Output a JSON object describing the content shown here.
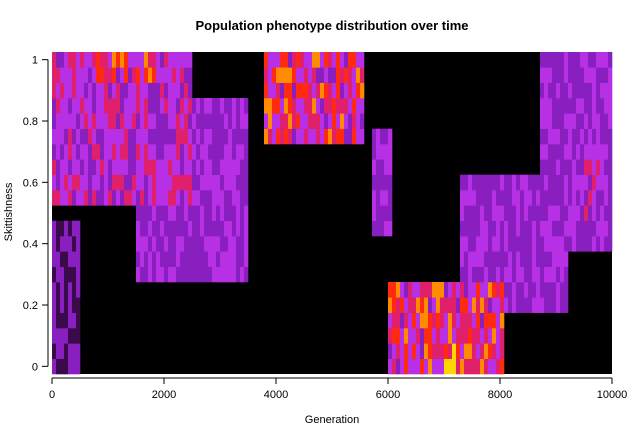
{
  "chart_data": {
    "type": "heatmap",
    "title": "Population phenotype distribution over time",
    "xlabel": "Generation",
    "ylabel": "Skittishness",
    "xlim": [
      0,
      10000
    ],
    "ylim": [
      -0.025,
      1.025
    ],
    "x_ticks": [
      "0",
      "2000",
      "4000",
      "6000",
      "8000",
      "10000"
    ],
    "x_tick_values": [
      0,
      2000,
      4000,
      6000,
      8000,
      10000
    ],
    "y_ticks": [
      "0",
      "0.2",
      "0.4",
      "0.6",
      "0.8",
      "1"
    ],
    "y_tick_values": [
      0,
      0.2,
      0.4,
      0.6,
      0.8,
      1
    ],
    "color_scale": [
      "#000000",
      "#3a0a4a",
      "#8a1fc0",
      "#b830e6",
      "#e0206a",
      "#ff2a10",
      "#ff8c00",
      "#ffd700"
    ],
    "cell_height": 0.05,
    "grid": false,
    "dominant_bands": [
      {
        "x_start": 0,
        "x_end": 500,
        "y_start": 0.0,
        "y_end": 0.45,
        "level": "low"
      },
      {
        "x_start": 0,
        "x_end": 2500,
        "y_start": 0.55,
        "y_end": 1.0,
        "level": "high"
      },
      {
        "x_start": 800,
        "x_end": 1900,
        "y_start": 0.95,
        "y_end": 1.0,
        "level": "peak"
      },
      {
        "x_start": 1500,
        "x_end": 3500,
        "y_start": 0.3,
        "y_end": 0.85,
        "level": "mid"
      },
      {
        "x_start": 3800,
        "x_end": 5600,
        "y_start": 0.75,
        "y_end": 1.0,
        "level": "peak"
      },
      {
        "x_start": 4300,
        "x_end": 4500,
        "y_start": 0.95,
        "y_end": 1.0,
        "level": "max"
      },
      {
        "x_start": 5700,
        "x_end": 6100,
        "y_start": 0.45,
        "y_end": 0.75,
        "level": "mid"
      },
      {
        "x_start": 6000,
        "x_end": 8100,
        "y_start": 0.0,
        "y_end": 0.25,
        "level": "peak"
      },
      {
        "x_start": 7000,
        "x_end": 7300,
        "y_start": 0.0,
        "y_end": 0.05,
        "level": "max"
      },
      {
        "x_start": 7300,
        "x_end": 9200,
        "y_start": 0.2,
        "y_end": 0.6,
        "level": "mid"
      },
      {
        "x_start": 8700,
        "x_end": 10000,
        "y_start": 0.4,
        "y_end": 1.0,
        "level": "mid"
      },
      {
        "x_start": 9500,
        "x_end": 9800,
        "y_start": 0.5,
        "y_end": 0.7,
        "level": "high"
      }
    ]
  }
}
